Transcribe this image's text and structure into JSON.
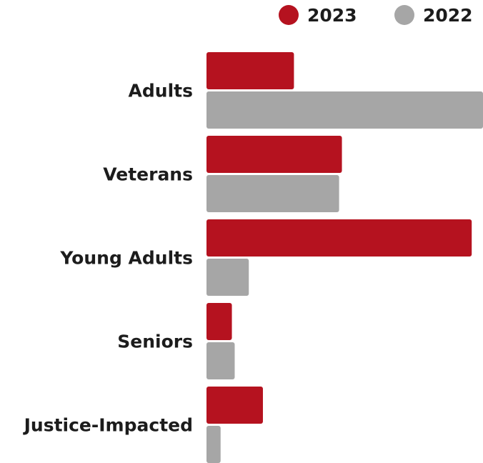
{
  "chart_data": {
    "type": "bar",
    "orientation": "horizontal",
    "title": "",
    "xlabel": "",
    "ylabel": "",
    "categories": [
      "Adults",
      "Veterans",
      "Young Adults",
      "Seniors",
      "Justice-Impacted"
    ],
    "series": [
      {
        "name": "2023",
        "color": "#b5121f",
        "values": [
          31,
          48,
          94,
          9,
          20
        ]
      },
      {
        "name": "2022",
        "color": "#a6a6a6",
        "values": [
          98,
          47,
          15,
          10,
          5
        ]
      }
    ],
    "xlim": [
      0,
      98
    ],
    "grid": false,
    "axis_ticks_shown": false,
    "legend_position": "top-right"
  }
}
